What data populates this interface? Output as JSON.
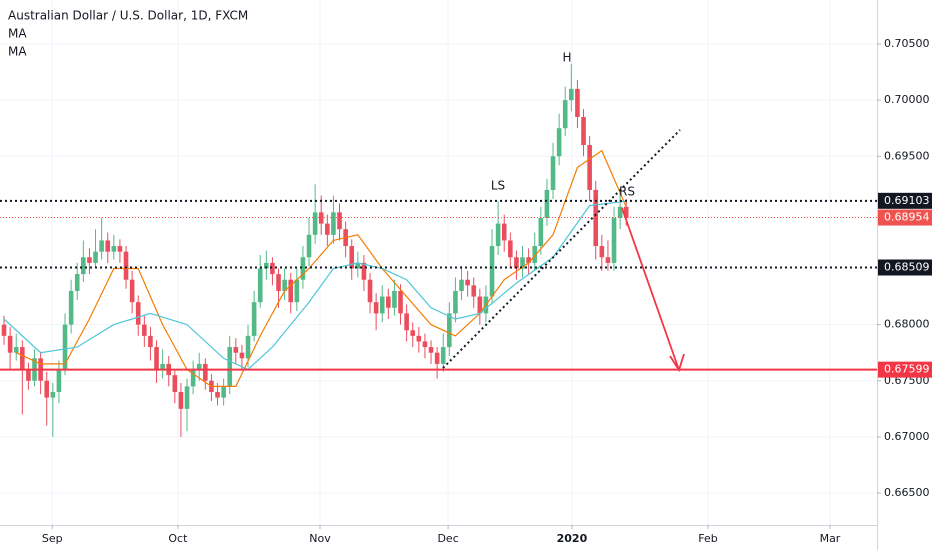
{
  "chart_data": {
    "type": "candlestick",
    "title": "Australian Dollar / U.S. Dollar, 1D, FXCM",
    "up_color": "#53b987",
    "down_color": "#eb4d5c",
    "grid": true,
    "xlim": [
      -0.66,
      143.11
    ],
    "ylim": [
      0.66215,
      0.70892
    ],
    "xticks": [
      {
        "value": 7.9,
        "label": "Sep"
      },
      {
        "value": 28.5,
        "label": "Oct"
      },
      {
        "value": 51.8,
        "label": "Nov"
      },
      {
        "value": 72.8,
        "label": "Dec"
      },
      {
        "value": 93.1,
        "label": "2020"
      },
      {
        "value": 115.4,
        "label": "Feb"
      },
      {
        "value": 135.4,
        "label": "Mar"
      }
    ],
    "yticks": [
      {
        "value": 0.705,
        "label": "0.70500"
      },
      {
        "value": 0.7,
        "label": "0.70000"
      },
      {
        "value": 0.695,
        "label": "0.69500"
      },
      {
        "value": 0.68,
        "label": "0.68000"
      },
      {
        "value": 0.675,
        "label": "0.67500"
      },
      {
        "value": 0.67,
        "label": "0.67000"
      },
      {
        "value": 0.665,
        "label": "0.66500"
      }
    ],
    "series": [
      {
        "ohlc": [
          [
            0.68,
            0.6808,
            0.6782,
            0.679
          ],
          [
            0.679,
            0.6798,
            0.676,
            0.6775
          ],
          [
            0.6775,
            0.6792,
            0.6768,
            0.678
          ],
          [
            0.678,
            0.6786,
            0.672,
            0.676
          ],
          [
            0.676,
            0.6766,
            0.6742,
            0.675
          ],
          [
            0.675,
            0.6778,
            0.6745,
            0.677
          ],
          [
            0.677,
            0.6776,
            0.6738,
            0.675
          ],
          [
            0.675,
            0.6758,
            0.671,
            0.6735
          ],
          [
            0.6735,
            0.6748,
            0.67,
            0.674
          ],
          [
            0.674,
            0.6768,
            0.673,
            0.676
          ],
          [
            0.676,
            0.681,
            0.6755,
            0.68
          ],
          [
            0.68,
            0.684,
            0.6792,
            0.683
          ],
          [
            0.683,
            0.6855,
            0.6822,
            0.6845
          ],
          [
            0.6845,
            0.6875,
            0.6838,
            0.686
          ],
          [
            0.686,
            0.6868,
            0.6845,
            0.6855
          ],
          [
            0.6855,
            0.6885,
            0.685,
            0.6865
          ],
          [
            0.6865,
            0.6895,
            0.6858,
            0.6875
          ],
          [
            0.6875,
            0.6882,
            0.6855,
            0.6865
          ],
          [
            0.6865,
            0.688,
            0.6858,
            0.687
          ],
          [
            0.687,
            0.6876,
            0.6855,
            0.6865
          ],
          [
            0.6865,
            0.687,
            0.6832,
            0.684
          ],
          [
            0.684,
            0.6848,
            0.681,
            0.682
          ],
          [
            0.682,
            0.6826,
            0.679,
            0.68
          ],
          [
            0.68,
            0.6808,
            0.678,
            0.679
          ],
          [
            0.679,
            0.6798,
            0.6768,
            0.678
          ],
          [
            0.678,
            0.6786,
            0.6748,
            0.676
          ],
          [
            0.676,
            0.6778,
            0.6752,
            0.6765
          ],
          [
            0.6765,
            0.6772,
            0.6745,
            0.6755
          ],
          [
            0.6755,
            0.676,
            0.673,
            0.674
          ],
          [
            0.674,
            0.6748,
            0.67,
            0.6725
          ],
          [
            0.6725,
            0.6752,
            0.6705,
            0.6745
          ],
          [
            0.6745,
            0.6768,
            0.6738,
            0.676
          ],
          [
            0.676,
            0.6775,
            0.675,
            0.6765
          ],
          [
            0.6765,
            0.677,
            0.6742,
            0.675
          ],
          [
            0.675,
            0.6756,
            0.6732,
            0.674
          ],
          [
            0.674,
            0.6748,
            0.6728,
            0.6735
          ],
          [
            0.6735,
            0.6752,
            0.6728,
            0.6745
          ],
          [
            0.6745,
            0.679,
            0.6738,
            0.678
          ],
          [
            0.678,
            0.6788,
            0.6765,
            0.6775
          ],
          [
            0.6775,
            0.6782,
            0.676,
            0.677
          ],
          [
            0.677,
            0.68,
            0.6762,
            0.679
          ],
          [
            0.679,
            0.683,
            0.6785,
            0.682
          ],
          [
            0.682,
            0.6862,
            0.6815,
            0.685
          ],
          [
            0.685,
            0.6866,
            0.684,
            0.6855
          ],
          [
            0.6855,
            0.686,
            0.6835,
            0.6845
          ],
          [
            0.6845,
            0.685,
            0.6815,
            0.683
          ],
          [
            0.683,
            0.685,
            0.6822,
            0.684
          ],
          [
            0.684,
            0.6846,
            0.681,
            0.682
          ],
          [
            0.682,
            0.685,
            0.6812,
            0.684
          ],
          [
            0.684,
            0.687,
            0.6832,
            0.686
          ],
          [
            0.686,
            0.6895,
            0.6852,
            0.688
          ],
          [
            0.688,
            0.6925,
            0.6872,
            0.69
          ],
          [
            0.69,
            0.6915,
            0.688,
            0.689
          ],
          [
            0.689,
            0.6898,
            0.687,
            0.688
          ],
          [
            0.688,
            0.6915,
            0.6872,
            0.69
          ],
          [
            0.69,
            0.6908,
            0.6875,
            0.6885
          ],
          [
            0.6885,
            0.6892,
            0.686,
            0.687
          ],
          [
            0.687,
            0.6876,
            0.684,
            0.685
          ],
          [
            0.685,
            0.6865,
            0.6842,
            0.6855
          ],
          [
            0.6855,
            0.6862,
            0.683,
            0.684
          ],
          [
            0.684,
            0.6846,
            0.681,
            0.682
          ],
          [
            0.682,
            0.6828,
            0.6795,
            0.681
          ],
          [
            0.681,
            0.6835,
            0.6802,
            0.6825
          ],
          [
            0.6825,
            0.6832,
            0.6805,
            0.6815
          ],
          [
            0.6815,
            0.684,
            0.6808,
            0.683
          ],
          [
            0.683,
            0.6836,
            0.68,
            0.681
          ],
          [
            0.681,
            0.6818,
            0.6785,
            0.6795
          ],
          [
            0.6795,
            0.6802,
            0.678,
            0.679
          ],
          [
            0.679,
            0.6798,
            0.6775,
            0.6785
          ],
          [
            0.6785,
            0.6792,
            0.677,
            0.678
          ],
          [
            0.678,
            0.6786,
            0.6765,
            0.6775
          ],
          [
            0.6775,
            0.678,
            0.6752,
            0.6765
          ],
          [
            0.6765,
            0.6792,
            0.6758,
            0.678
          ],
          [
            0.678,
            0.682,
            0.6772,
            0.681
          ],
          [
            0.681,
            0.6842,
            0.6802,
            0.683
          ],
          [
            0.683,
            0.6852,
            0.6822,
            0.684
          ],
          [
            0.684,
            0.6848,
            0.6825,
            0.6835
          ],
          [
            0.6835,
            0.6842,
            0.6815,
            0.6825
          ],
          [
            0.6825,
            0.6832,
            0.68,
            0.681
          ],
          [
            0.681,
            0.6835,
            0.6802,
            0.6825
          ],
          [
            0.6825,
            0.6885,
            0.6818,
            0.687
          ],
          [
            0.687,
            0.691,
            0.6862,
            0.689
          ],
          [
            0.689,
            0.6898,
            0.6865,
            0.6875
          ],
          [
            0.6875,
            0.6882,
            0.685,
            0.686
          ],
          [
            0.686,
            0.6866,
            0.684,
            0.685
          ],
          [
            0.685,
            0.687,
            0.6842,
            0.686
          ],
          [
            0.686,
            0.6868,
            0.6845,
            0.6855
          ],
          [
            0.6855,
            0.6882,
            0.6848,
            0.687
          ],
          [
            0.687,
            0.6905,
            0.6862,
            0.6895
          ],
          [
            0.6895,
            0.693,
            0.6888,
            0.692
          ],
          [
            0.692,
            0.6962,
            0.6912,
            0.695
          ],
          [
            0.695,
            0.6988,
            0.6942,
            0.6975
          ],
          [
            0.6975,
            0.7012,
            0.6968,
            0.7
          ],
          [
            0.7,
            0.7032,
            0.699,
            0.701
          ],
          [
            0.701,
            0.7018,
            0.6975,
            0.6985
          ],
          [
            0.6985,
            0.6992,
            0.695,
            0.696
          ],
          [
            0.696,
            0.6968,
            0.691,
            0.692
          ],
          [
            0.692,
            0.6928,
            0.6858,
            0.687
          ],
          [
            0.687,
            0.688,
            0.6848,
            0.686
          ],
          [
            0.686,
            0.6875,
            0.6848,
            0.6855
          ],
          [
            0.6855,
            0.6905,
            0.6848,
            0.6895
          ],
          [
            0.6895,
            0.6918,
            0.6885,
            0.6905
          ],
          [
            0.6905,
            0.6912,
            0.6888,
            0.6895
          ]
        ]
      },
      {
        "name": "MA",
        "color": "#f57c00",
        "x": [
          2,
          6,
          10,
          14,
          18,
          22,
          26,
          30,
          34,
          38,
          42,
          46,
          50,
          54,
          58,
          62,
          66,
          70,
          74,
          78,
          82,
          86,
          90,
          94,
          98,
          102
        ],
        "values": [
          0.6775,
          0.6765,
          0.6765,
          0.6805,
          0.685,
          0.685,
          0.68,
          0.676,
          0.6745,
          0.6745,
          0.679,
          0.683,
          0.685,
          0.6875,
          0.688,
          0.685,
          0.6825,
          0.68,
          0.679,
          0.681,
          0.684,
          0.6855,
          0.688,
          0.694,
          0.6955,
          0.6905
        ]
      },
      {
        "name": "MA",
        "color": "#4dc6d8",
        "x": [
          0,
          6,
          12,
          18,
          24,
          30,
          36,
          40,
          44,
          50,
          54,
          58,
          62,
          66,
          70,
          74,
          78,
          84,
          90,
          96,
          102
        ],
        "values": [
          0.6805,
          0.6775,
          0.678,
          0.68,
          0.681,
          0.68,
          0.677,
          0.676,
          0.678,
          0.682,
          0.685,
          0.6855,
          0.685,
          0.684,
          0.6815,
          0.6805,
          0.681,
          0.6837,
          0.686,
          0.6906,
          0.691
        ]
      }
    ],
    "levels": [
      {
        "value": 0.69103,
        "label": "0.69103",
        "color": "#131722",
        "style": "dotted"
      },
      {
        "value": 0.68954,
        "label": "0.68954",
        "color": "#ef5350",
        "style": "thin"
      },
      {
        "value": 0.68509,
        "label": "0.68509",
        "color": "#131722",
        "style": "dotted"
      },
      {
        "value": 0.67599,
        "label": "0.67599",
        "color": "#f23645",
        "style": "solid"
      }
    ],
    "annotations": [
      {
        "text": "LS"
      },
      {
        "text": "H"
      },
      {
        "text": "RS"
      }
    ]
  }
}
